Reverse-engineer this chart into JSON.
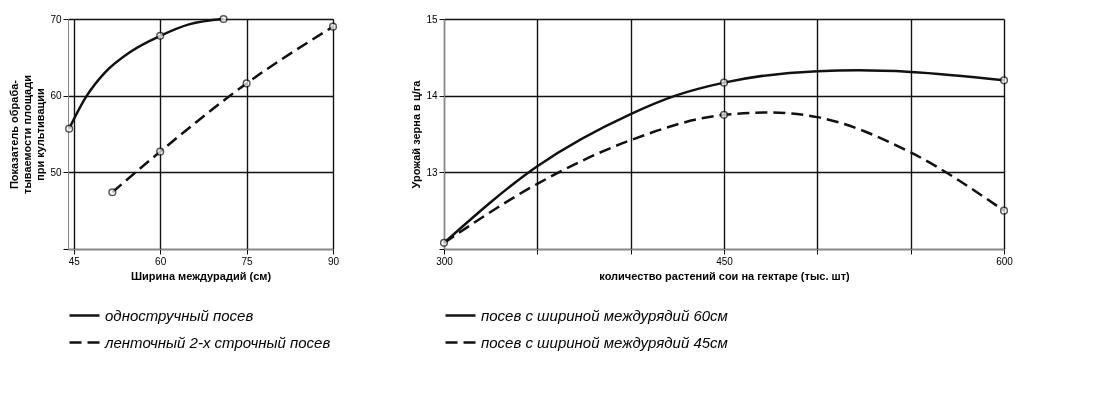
{
  "chart_data": [
    {
      "type": "line",
      "xlabel": "Ширина междурадий (см)",
      "ylabel": "Показатель обраба-\nтываемости площади\nпри культивации",
      "xlim": [
        44,
        90
      ],
      "xticks": [
        45,
        60,
        75,
        90
      ],
      "ylim": [
        40,
        70
      ],
      "yticks": [
        {
          "value": 40,
          "label": null
        },
        50,
        60,
        70
      ],
      "grid": true,
      "legend": "bottom left",
      "series": [
        {
          "name": "одностручный посев",
          "color": "#111111",
          "line_style": "solid",
          "x": [
            44.2,
            47.1,
            50.4,
            55,
            60,
            65,
            71
          ],
          "values": [
            55.7,
            59.8,
            63,
            65.8,
            67.8,
            69.3,
            70
          ]
        },
        {
          "name": "ленточный 2-х строчный посев",
          "color": "#111111",
          "line_style": "dashed",
          "x": [
            51.7,
            60,
            75,
            90
          ],
          "values": [
            47.4,
            52.7,
            61.6,
            69
          ]
        },
        {
          "type": "scatter",
          "color": "#111111",
          "marker": "circle",
          "x": [
            44.2,
            60,
            71,
            51.7,
            60,
            75,
            90
          ],
          "values": [
            55.7,
            67.8,
            70,
            47.4,
            52.7,
            61.6,
            69
          ]
        }
      ]
    },
    {
      "type": "line",
      "xlabel": "количество растений сои на гектаре (тыс. шт)",
      "ylabel": "Урожай зерна в ц/га",
      "xlim": [
        300,
        600
      ],
      "xticks": [
        300,
        {
          "value": 350,
          "label": null
        },
        {
          "value": 400,
          "label": null
        },
        450,
        {
          "value": 500,
          "label": null
        },
        {
          "value": 550,
          "label": null
        },
        600
      ],
      "ylim": [
        12,
        15
      ],
      "yticks": [
        {
          "value": 12,
          "label": null
        },
        13,
        14,
        15
      ],
      "grid": true,
      "legend": "bottom left",
      "series": [
        {
          "name": "посев с шириной междурядий 60см",
          "color": "#111111",
          "line_style": "solid",
          "x": [
            300,
            350,
            400,
            424,
            450,
            500,
            522,
            550,
            600
          ],
          "values": [
            12.08,
            13.08,
            13.76,
            14.0,
            14.17,
            14.32,
            14.33,
            14.31,
            14.2
          ]
        },
        {
          "name": "посев с шириной междурядий 45см",
          "color": "#111111",
          "line_style": "dashed",
          "x": [
            300,
            350,
            400,
            450,
            474,
            500,
            550,
            600
          ],
          "values": [
            12.08,
            12.85,
            13.42,
            13.75,
            13.78,
            13.72,
            13.26,
            12.5
          ]
        },
        {
          "type": "scatter",
          "color": "#111111",
          "marker": "circle",
          "x": [
            300,
            450,
            600,
            450,
            600
          ],
          "values": [
            12.08,
            14.17,
            14.2,
            13.75,
            12.5
          ]
        }
      ]
    }
  ]
}
